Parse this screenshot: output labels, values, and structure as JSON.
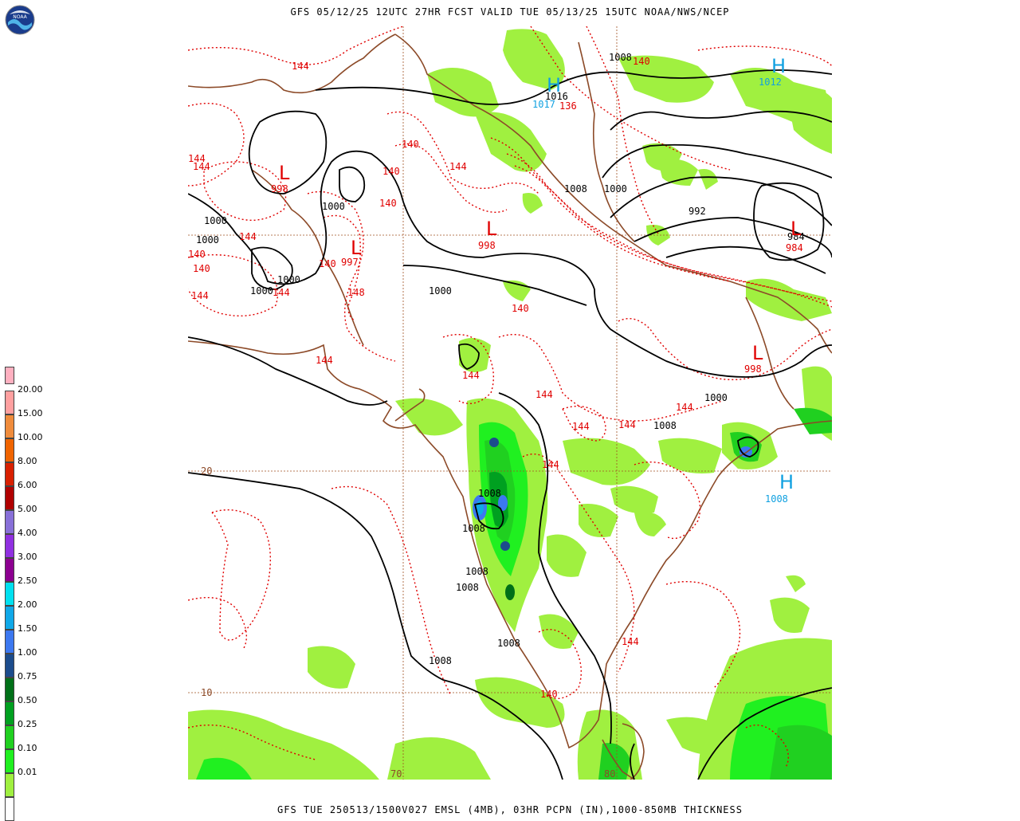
{
  "header": {
    "title": "GFS 05/12/25 12UTC 27HR FCST VALID TUE 05/13/25 15UTC NOAA/NWS/NCEP"
  },
  "footer": {
    "caption": "GFS TUE 250513/1500V027 EMSL (4MB), 03HR PCPN (IN),1000-850MB THICKNESS"
  },
  "logo": {
    "text": "NOAA",
    "icon": "noaa-logo-icon"
  },
  "legend": {
    "items": [
      {
        "label": "",
        "color": "#ffb0c0"
      },
      {
        "label": "20.00",
        "color": "#ffa0a0"
      },
      {
        "label": "15.00",
        "color": "#f08c3c"
      },
      {
        "label": "10.00",
        "color": "#f06400"
      },
      {
        "label": "8.00",
        "color": "#d82000"
      },
      {
        "label": "6.00",
        "color": "#b00000"
      },
      {
        "label": "5.00",
        "color": "#8870d8"
      },
      {
        "label": "4.00",
        "color": "#9030e0"
      },
      {
        "label": "3.00",
        "color": "#8c0090"
      },
      {
        "label": "2.50",
        "color": "#00e0f0"
      },
      {
        "label": "2.00",
        "color": "#10a8e8"
      },
      {
        "label": "1.50",
        "color": "#3c78f0"
      },
      {
        "label": "1.00",
        "color": "#1c4c8c"
      },
      {
        "label": "0.75",
        "color": "#007018"
      },
      {
        "label": "0.50",
        "color": "#00a020"
      },
      {
        "label": "0.25",
        "color": "#20d020"
      },
      {
        "label": "0.10",
        "color": "#20f020"
      },
      {
        "label": "0.01",
        "color": "#a0f040"
      },
      {
        "label": "",
        "color": "#ffffff"
      }
    ]
  },
  "grid": {
    "lat_labels": [
      "20",
      "10"
    ],
    "lon_labels": [
      "70",
      "80"
    ]
  },
  "pressure_centers": [
    {
      "letter": "H",
      "value": "1012",
      "color": "#10a0e0"
    },
    {
      "letter": "H",
      "value": "1017",
      "color": "#10a0e0"
    },
    {
      "letter": "H",
      "value": "1008",
      "color": "#10a0e0"
    },
    {
      "letter": "L",
      "value": "998",
      "color": "#e00000"
    },
    {
      "letter": "L",
      "value": "997",
      "color": "#e00000"
    },
    {
      "letter": "L",
      "value": "998",
      "color": "#e00000"
    },
    {
      "letter": "L",
      "value": "984",
      "color": "#e00000"
    },
    {
      "letter": "L",
      "value": "998",
      "color": "#e00000"
    }
  ],
  "isobar_labels": [
    "1008",
    "1016",
    "1008",
    "1000",
    "992",
    "984",
    "1000",
    "1000",
    "1000",
    "1000",
    "1000",
    "1000",
    "1000",
    "1008",
    "1008",
    "1008",
    "1008",
    "1008",
    "1008",
    "1008"
  ],
  "thickness_labels": [
    "144",
    "140",
    "136",
    "140",
    "140",
    "144",
    "140",
    "144",
    "144",
    "140",
    "140",
    "144",
    "144",
    "140",
    "148",
    "144",
    "144",
    "144",
    "144",
    "144",
    "144",
    "144",
    "144",
    "140",
    "144",
    "140"
  ]
}
